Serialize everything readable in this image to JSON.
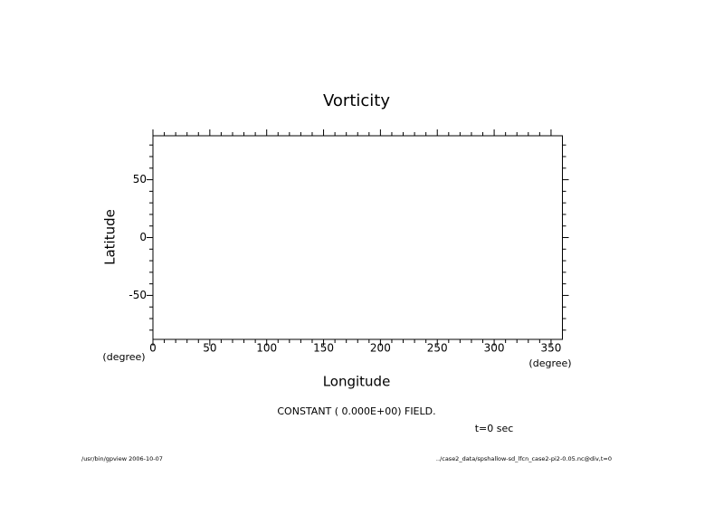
{
  "chart_data": {
    "type": "contour",
    "title": "Vorticity",
    "x_label": "Longitude",
    "y_label": "Latitude",
    "x_unit": "(degree)",
    "y_unit": "(degree)",
    "annotation": "CONSTANT ( 0.000E+00) FIELD.",
    "time_label": "t=0 sec",
    "footer_left": "/usr/bin/gpview  2006-10-07",
    "footer_right": "../case2_data/spshallow-sd_lfcn_case2-pi2-0.05.nc@div,t=0",
    "xlim": [
      0,
      360
    ],
    "ylim": [
      -88,
      88
    ],
    "xticks": [
      0,
      50,
      100,
      150,
      200,
      250,
      300,
      350
    ],
    "yticks": [
      -50,
      0,
      50
    ],
    "xminorticks": [
      10,
      20,
      30,
      40,
      60,
      70,
      80,
      90,
      110,
      120,
      130,
      140,
      160,
      170,
      180,
      190,
      210,
      220,
      230,
      240,
      260,
      270,
      280,
      290,
      310,
      320,
      330,
      340
    ],
    "yminorticks": [
      -80,
      -70,
      -60,
      -40,
      -30,
      -20,
      -10,
      10,
      20,
      30,
      40,
      60,
      70,
      80
    ]
  }
}
